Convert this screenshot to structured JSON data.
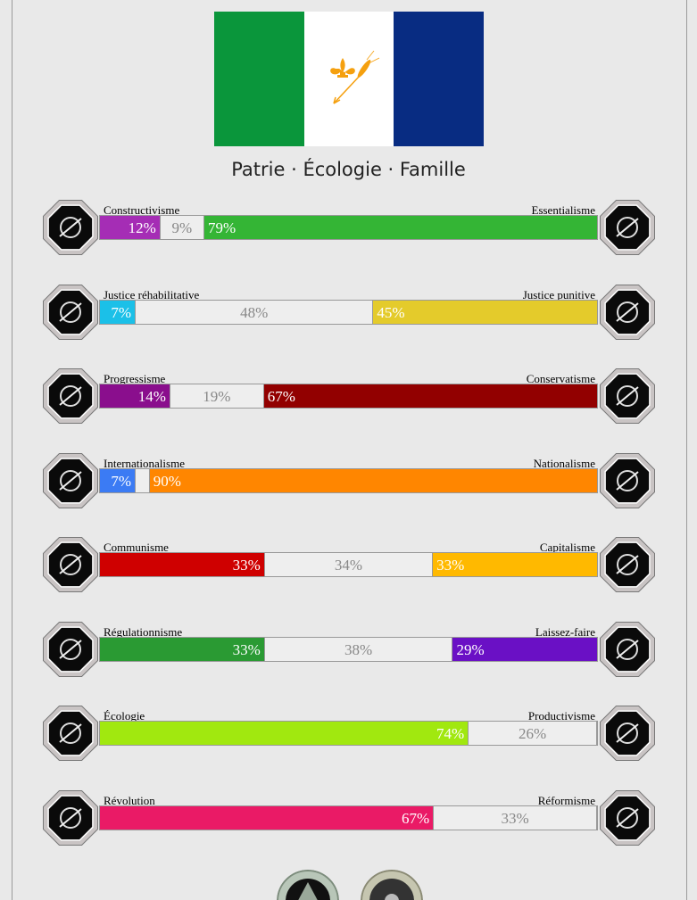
{
  "flag": {
    "colors": [
      "#0a963b",
      "#ffffff",
      "#082c82"
    ],
    "emblem_color": "#f5a00f",
    "emblem": "fleur-de-lis-and-wheat"
  },
  "motto": "Patrie · Écologie · Famille",
  "axes": [
    {
      "left": "Constructivisme",
      "right": "Essentialisme",
      "left_pct": 12,
      "mid_pct": 9,
      "right_pct": 79,
      "left_text": "12%",
      "mid_text": "9%",
      "right_text": "79%",
      "left_color": "#a52db5",
      "right_color": "#34b535",
      "left_icon": "eye-icon",
      "right_icon": "flower-icon"
    },
    {
      "left": "Justice réhabilitative",
      "right": "Justice punitive",
      "left_pct": 7,
      "mid_pct": 48,
      "right_pct": 45,
      "left_text": "7%",
      "mid_text": "48%",
      "right_text": "45%",
      "left_color": "#1bc0e8",
      "right_color": "#e4cb2b",
      "left_icon": "handshake-icon",
      "right_icon": "prison-bars-icon"
    },
    {
      "left": "Progressisme",
      "right": "Conservatisme",
      "left_pct": 14,
      "mid_pct": 19,
      "right_pct": 67,
      "left_text": "14%",
      "mid_text": "19%",
      "right_text": "67%",
      "left_color": "#8a0e8d",
      "right_color": "#920000",
      "left_icon": "rocket-icon",
      "right_icon": "quill-icon"
    },
    {
      "left": "Internationalisme",
      "right": "Nationalisme",
      "left_pct": 7,
      "mid_pct": 3,
      "right_pct": 90,
      "left_text": "7%",
      "mid_text": "",
      "right_text": "90%",
      "left_color": "#3b7bf4",
      "right_color": "#ff8600",
      "left_icon": "globe-icon",
      "right_icon": "flag-icon"
    },
    {
      "left": "Communisme",
      "right": "Capitalisme",
      "left_pct": 33,
      "mid_pct": 34,
      "right_pct": 33,
      "left_text": "33%",
      "mid_text": "34%",
      "right_text": "33%",
      "left_color": "#cf0000",
      "right_color": "#ffb900",
      "left_icon": "hammer-sickle-icon",
      "right_icon": "money-bag-icon"
    },
    {
      "left": "Régulationnisme",
      "right": "Laissez-faire",
      "left_pct": 33,
      "mid_pct": 38,
      "right_pct": 29,
      "left_text": "33%",
      "mid_text": "38%",
      "right_text": "29%",
      "left_color": "#2a9a33",
      "right_color": "#6a10c5",
      "left_icon": "ruler-icon",
      "right_icon": "butterfly-icon"
    },
    {
      "left": "Écologie",
      "right": "Productivisme",
      "left_pct": 74,
      "mid_pct": 26,
      "right_pct": 0,
      "left_text": "74%",
      "mid_text": "26%",
      "right_text": "",
      "left_color": "#a1e80f",
      "right_color": "#888888",
      "left_icon": "sprout-icon",
      "right_icon": "factory-gear-icon"
    },
    {
      "left": "Révolution",
      "right": "Réformisme",
      "left_pct": 67,
      "mid_pct": 33,
      "right_pct": 0,
      "left_text": "67%",
      "mid_text": "33%",
      "right_text": "",
      "left_color": "#ea1a66",
      "right_color": "#888888",
      "left_icon": "fist-icon",
      "right_icon": "ballot-icon"
    }
  ],
  "seals": [
    "pyramid-seal-icon",
    "sunburst-seal-icon"
  ]
}
